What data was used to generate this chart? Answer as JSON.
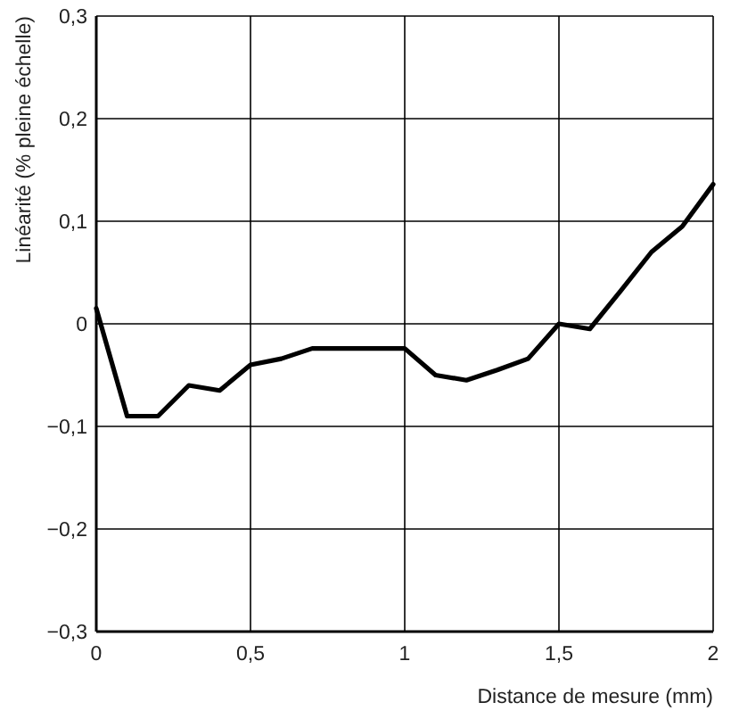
{
  "chart_data": {
    "type": "line",
    "xlabel": "Distance de mesure (mm)",
    "ylabel": "Linéarité (% pleine échelle)",
    "x": [
      0,
      0.1,
      0.2,
      0.3,
      0.4,
      0.5,
      0.6,
      0.7,
      0.8,
      0.9,
      1.0,
      1.1,
      1.2,
      1.3,
      1.4,
      1.5,
      1.6,
      1.7,
      1.8,
      1.9,
      2.0
    ],
    "series": [
      {
        "color": "#000000",
        "values": [
          0.015,
          -0.09,
          -0.09,
          -0.06,
          -0.065,
          -0.04,
          -0.034,
          -0.024,
          -0.024,
          -0.024,
          -0.024,
          -0.05,
          -0.055,
          -0.045,
          -0.034,
          0,
          -0.005,
          0.032,
          0.07,
          0.095,
          0.136
        ]
      }
    ],
    "xlim": [
      0,
      2
    ],
    "ylim": [
      -0.3,
      0.3
    ],
    "xticks": [
      0,
      {
        "value": 0.5,
        "label": "0,5"
      },
      1,
      {
        "value": 1.5,
        "label": "1,5"
      },
      2
    ],
    "yticks": [
      {
        "value": -0.3,
        "label": "−0,3"
      },
      {
        "value": -0.2,
        "label": "−0,2"
      },
      {
        "value": -0.1,
        "label": "−0,1"
      },
      0,
      {
        "value": 0.1,
        "label": "0,1"
      },
      {
        "value": 0.2,
        "label": "0,2"
      },
      {
        "value": 0.3,
        "label": "0,3"
      }
    ],
    "grid": true,
    "marker": "none",
    "line_style": "solid"
  }
}
